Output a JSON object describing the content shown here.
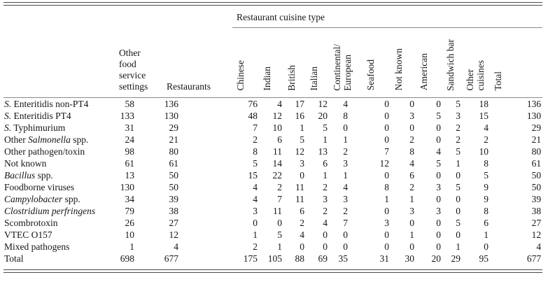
{
  "page": {
    "background": "#ffffff",
    "rule_color_double": "#4a4a4a",
    "rule_color_single": "#8a8a8a",
    "text_color": "#161616"
  },
  "table": {
    "group_header": "Restaurant cuisine type",
    "left_headers": {
      "other_food": "Other\nfood\nservice\nsettings",
      "restaurants": "Restaurants"
    },
    "cuisine_headers": [
      "Chinese",
      "Indian",
      "British",
      "Italian",
      "Continental/\nEuropean",
      "Seafood",
      "Not known",
      "American",
      "Sandwich bar",
      "Other\ncuisines",
      "Total"
    ],
    "rows": [
      {
        "label": [
          {
            "t": "S.",
            "i": true
          },
          {
            "t": " Enteritidis non-PT4"
          }
        ],
        "values": [
          58,
          136,
          76,
          4,
          17,
          12,
          4,
          0,
          0,
          0,
          5,
          18,
          136
        ]
      },
      {
        "label": [
          {
            "t": "S.",
            "i": true
          },
          {
            "t": " Enteritidis PT4"
          }
        ],
        "values": [
          133,
          130,
          48,
          12,
          16,
          20,
          8,
          0,
          3,
          5,
          3,
          15,
          130
        ]
      },
      {
        "label": [
          {
            "t": "S.",
            "i": true
          },
          {
            "t": " Typhimurium"
          }
        ],
        "values": [
          31,
          29,
          7,
          10,
          1,
          5,
          0,
          0,
          0,
          0,
          2,
          4,
          29
        ]
      },
      {
        "label": [
          {
            "t": "Other "
          },
          {
            "t": "Salmonella",
            "i": true
          },
          {
            "t": " spp."
          }
        ],
        "values": [
          24,
          21,
          2,
          6,
          5,
          1,
          1,
          0,
          2,
          0,
          2,
          2,
          21
        ]
      },
      {
        "label": [
          {
            "t": "Other pathogen/toxin"
          }
        ],
        "values": [
          98,
          80,
          8,
          11,
          12,
          13,
          2,
          7,
          8,
          4,
          5,
          10,
          80
        ]
      },
      {
        "label": [
          {
            "t": "Not known"
          }
        ],
        "values": [
          61,
          61,
          5,
          14,
          3,
          6,
          3,
          12,
          4,
          5,
          1,
          8,
          61
        ]
      },
      {
        "label": [
          {
            "t": "Bacillus",
            "i": true
          },
          {
            "t": " spp."
          }
        ],
        "values": [
          13,
          50,
          15,
          22,
          0,
          1,
          1,
          0,
          6,
          0,
          0,
          5,
          50
        ]
      },
      {
        "label": [
          {
            "t": "Foodborne viruses"
          }
        ],
        "values": [
          130,
          50,
          4,
          2,
          11,
          2,
          4,
          8,
          2,
          3,
          5,
          9,
          50
        ]
      },
      {
        "label": [
          {
            "t": "Campylobacter",
            "i": true
          },
          {
            "t": " spp."
          }
        ],
        "values": [
          34,
          39,
          4,
          7,
          11,
          3,
          3,
          1,
          1,
          0,
          0,
          9,
          39
        ]
      },
      {
        "label": [
          {
            "t": "Clostridium perfringens",
            "i": true
          }
        ],
        "values": [
          79,
          38,
          3,
          11,
          6,
          2,
          2,
          0,
          3,
          3,
          0,
          8,
          38
        ]
      },
      {
        "label": [
          {
            "t": "Scombrotoxin"
          }
        ],
        "values": [
          26,
          27,
          0,
          0,
          2,
          4,
          7,
          3,
          0,
          0,
          5,
          6,
          27
        ]
      },
      {
        "label": [
          {
            "t": "VTEC O157"
          }
        ],
        "values": [
          10,
          12,
          1,
          5,
          4,
          0,
          0,
          0,
          1,
          0,
          0,
          1,
          12
        ]
      },
      {
        "label": [
          {
            "t": "Mixed pathogens"
          }
        ],
        "values": [
          1,
          4,
          2,
          1,
          0,
          0,
          0,
          0,
          0,
          0,
          1,
          0,
          4
        ]
      },
      {
        "label": [
          {
            "t": "Total"
          }
        ],
        "values": [
          698,
          677,
          175,
          105,
          88,
          69,
          35,
          31,
          30,
          20,
          29,
          95,
          677
        ]
      }
    ]
  }
}
